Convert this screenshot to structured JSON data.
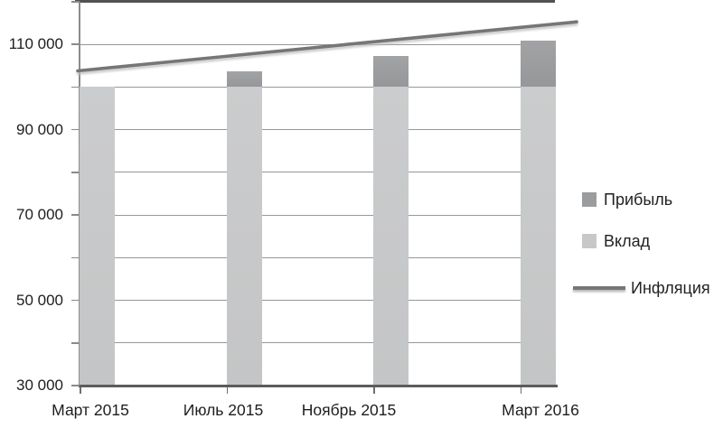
{
  "chart_data": {
    "type": "bar",
    "subtype": "stacked-bars-with-line-overlay",
    "title": "",
    "xlabel": "",
    "ylabel": "",
    "categories": [
      "Март 2015",
      "Июль 2015",
      "Ноябрь 2015",
      "Март 2016"
    ],
    "series": [
      {
        "name": "Вклад",
        "type": "bar",
        "stack": "deposit-base",
        "color": "#c7c8c9",
        "values": [
          100000,
          100000,
          100000,
          100000
        ]
      },
      {
        "name": "Прибыль",
        "type": "bar",
        "stack": "on-top-of-deposit",
        "color": "#9b9c9d",
        "values": [
          0,
          3600,
          7300,
          11000
        ]
      },
      {
        "name": "Инфляция",
        "type": "line",
        "color": "#767676",
        "values": [
          104000,
          107500,
          111000,
          114500
        ],
        "line_start_value": 103800,
        "line_end_value": 115300
      }
    ],
    "stacked_totals": [
      100000,
      103600,
      107300,
      111000
    ],
    "ylim": [
      30000,
      120000
    ],
    "ytick_step": 10000,
    "yticks_labeled": [
      {
        "value": 110000,
        "label": "110 000"
      },
      {
        "value": 90000,
        "label": "90 000"
      },
      {
        "value": 70000,
        "label": "70 000"
      },
      {
        "value": 50000,
        "label": "50 000"
      },
      {
        "value": 30000,
        "label": "30 000"
      }
    ],
    "grid": "horizontal-every-10000",
    "legend": {
      "position": "right-middle",
      "items": [
        {
          "label": "Прибыль",
          "swatch": "square",
          "color": "#9b9c9d"
        },
        {
          "label": "Вклад",
          "swatch": "square",
          "color": "#c7c8c9"
        },
        {
          "label": "Инфляция",
          "swatch": "line",
          "color": "#767676"
        }
      ]
    },
    "colors": {
      "background": "#ffffff",
      "gridline": "#979797",
      "axis_dark": "#5c5c5c",
      "text": "#1e1e1e"
    }
  }
}
